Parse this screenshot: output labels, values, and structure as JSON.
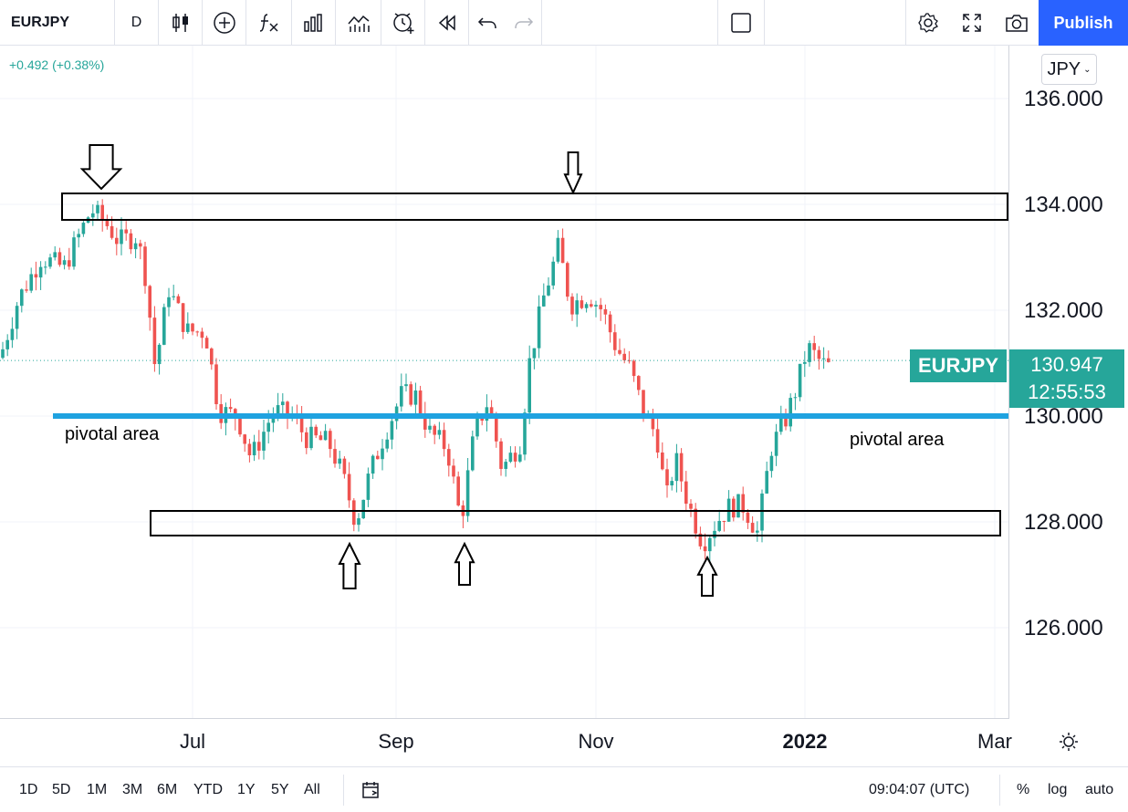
{
  "toolbar": {
    "symbol": "EURJPY",
    "interval": "D",
    "publish_label": "Publish"
  },
  "header": {
    "change_text": "+0.492 (+0.38%)",
    "currency": "JPY"
  },
  "price_axis": {
    "ticks": [
      "136.000",
      "134.000",
      "132.000",
      "130.000",
      "128.000",
      "126.000"
    ]
  },
  "last_price": {
    "symbol": "EURJPY",
    "price": "130.947",
    "countdown": "12:55:53"
  },
  "time_axis": {
    "labels": [
      "Jul",
      "Sep",
      "Nov",
      "2022",
      "Mar"
    ]
  },
  "annotations": {
    "left_label": "pivotal area",
    "right_label": "pivotal area"
  },
  "bottom_bar": {
    "ranges": [
      "1D",
      "5D",
      "1M",
      "3M",
      "6M",
      "YTD",
      "1Y",
      "5Y",
      "All"
    ],
    "clock": "09:04:07 (UTC)",
    "percent": "%",
    "log": "log",
    "auto": "auto"
  },
  "colors": {
    "up": "#26a69a",
    "down": "#ef5350",
    "pivot_line": "#1fa2e0",
    "publish": "#2962ff"
  },
  "chart_data": {
    "type": "candlestick",
    "symbol": "EURJPY",
    "ylim": [
      124.5,
      137
    ],
    "yticks": [
      126,
      128,
      130,
      132,
      134,
      136
    ],
    "last_price": 130.947,
    "resistance_zone": [
      133.7,
      134.2
    ],
    "support_zone": [
      127.75,
      128.2
    ],
    "pivot_level": 130.0
  }
}
